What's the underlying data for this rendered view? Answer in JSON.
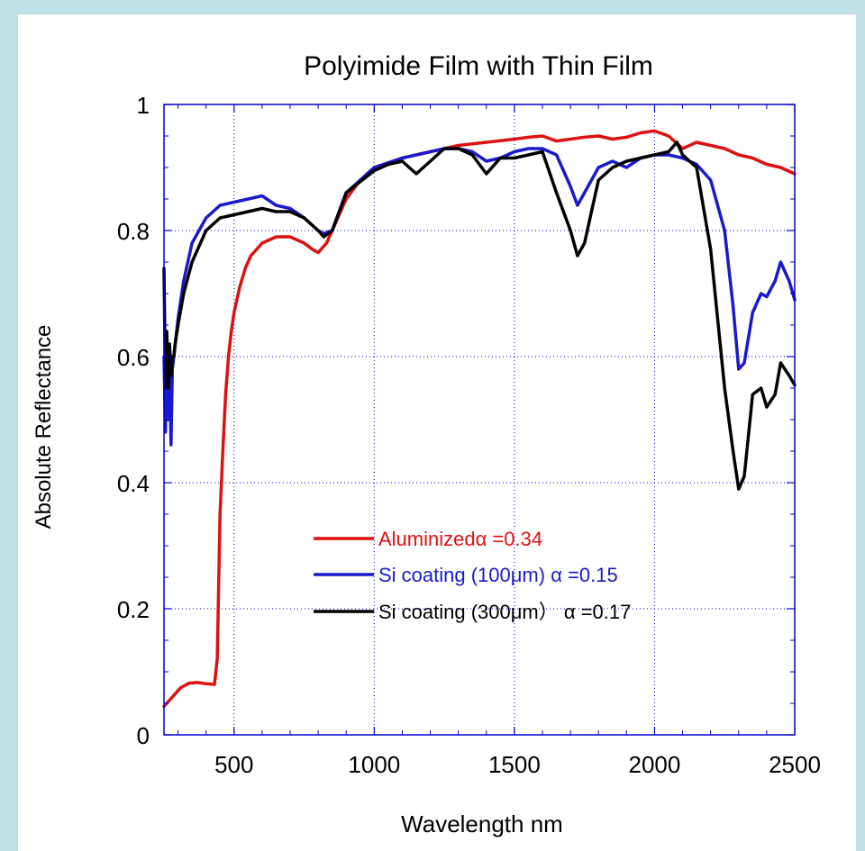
{
  "chart_data": {
    "type": "line",
    "title": "Polyimide Film with Thin Film",
    "xlabel": "Wavelength nm",
    "ylabel": "Absolute Reflectance",
    "xlim": [
      250,
      2500
    ],
    "ylim": [
      0,
      1
    ],
    "xticks": [
      500,
      1000,
      1500,
      2000,
      2500
    ],
    "xtick_labels": [
      "500",
      "1000",
      "1500",
      "2000",
      "2500"
    ],
    "yticks": [
      0,
      0.2,
      0.4,
      0.6,
      0.8,
      1
    ],
    "ytick_labels": [
      "0",
      "0.2",
      "0.4",
      "0.6",
      "0.8",
      "1"
    ],
    "grid": true,
    "legend_position": "lower-center",
    "series": [
      {
        "name": "Aluminizedα =0.34",
        "color": "#dd1111",
        "x": [
          250,
          280,
          310,
          340,
          370,
          400,
          430,
          440,
          450,
          460,
          470,
          480,
          490,
          500,
          520,
          540,
          560,
          600,
          650,
          700,
          750,
          780,
          800,
          830,
          860,
          900,
          950,
          1000,
          1100,
          1200,
          1300,
          1400,
          1500,
          1550,
          1600,
          1650,
          1700,
          1750,
          1800,
          1850,
          1900,
          1950,
          2000,
          2050,
          2100,
          2150,
          2200,
          2250,
          2300,
          2350,
          2400,
          2450,
          2500
        ],
        "y": [
          0.045,
          0.06,
          0.075,
          0.082,
          0.083,
          0.081,
          0.08,
          0.12,
          0.35,
          0.45,
          0.54,
          0.6,
          0.64,
          0.67,
          0.71,
          0.74,
          0.76,
          0.78,
          0.79,
          0.79,
          0.78,
          0.77,
          0.765,
          0.78,
          0.81,
          0.85,
          0.88,
          0.9,
          0.915,
          0.925,
          0.935,
          0.94,
          0.945,
          0.948,
          0.95,
          0.942,
          0.945,
          0.948,
          0.95,
          0.945,
          0.948,
          0.955,
          0.958,
          0.95,
          0.93,
          0.94,
          0.935,
          0.93,
          0.92,
          0.915,
          0.905,
          0.9,
          0.89
        ]
      },
      {
        "name": "Si coating (100μm)  α =0.15",
        "color": "#1a1acc",
        "x": [
          250,
          255,
          260,
          265,
          270,
          275,
          280,
          285,
          290,
          300,
          320,
          350,
          400,
          450,
          500,
          550,
          600,
          650,
          700,
          750,
          800,
          820,
          850,
          900,
          1000,
          1100,
          1150,
          1200,
          1250,
          1300,
          1350,
          1400,
          1450,
          1500,
          1550,
          1600,
          1650,
          1700,
          1725,
          1750,
          1800,
          1850,
          1900,
          1950,
          2000,
          2050,
          2100,
          2150,
          2200,
          2250,
          2280,
          2300,
          2320,
          2350,
          2380,
          2400,
          2430,
          2450,
          2480,
          2500
        ],
        "y": [
          0.6,
          0.48,
          0.62,
          0.5,
          0.6,
          0.46,
          0.58,
          0.6,
          0.62,
          0.66,
          0.72,
          0.78,
          0.82,
          0.84,
          0.845,
          0.85,
          0.855,
          0.84,
          0.835,
          0.82,
          0.8,
          0.795,
          0.8,
          0.86,
          0.9,
          0.915,
          0.92,
          0.925,
          0.93,
          0.93,
          0.925,
          0.91,
          0.915,
          0.925,
          0.93,
          0.93,
          0.92,
          0.87,
          0.84,
          0.86,
          0.9,
          0.91,
          0.9,
          0.915,
          0.92,
          0.92,
          0.915,
          0.905,
          0.88,
          0.8,
          0.68,
          0.58,
          0.59,
          0.67,
          0.7,
          0.695,
          0.72,
          0.75,
          0.72,
          0.69
        ]
      },
      {
        "name": "Si coating (300μm） α =0.17",
        "color": "#000000",
        "x": [
          250,
          255,
          260,
          265,
          270,
          275,
          280,
          285,
          290,
          300,
          320,
          350,
          400,
          450,
          500,
          550,
          600,
          650,
          700,
          750,
          800,
          820,
          850,
          900,
          1000,
          1050,
          1100,
          1150,
          1200,
          1250,
          1300,
          1350,
          1400,
          1450,
          1500,
          1550,
          1600,
          1650,
          1700,
          1725,
          1750,
          1800,
          1850,
          1900,
          1950,
          2000,
          2050,
          2080,
          2100,
          2150,
          2200,
          2250,
          2280,
          2300,
          2320,
          2350,
          2380,
          2400,
          2430,
          2450,
          2480,
          2500
        ],
        "y": [
          0.74,
          0.55,
          0.64,
          0.55,
          0.62,
          0.57,
          0.6,
          0.6,
          0.62,
          0.65,
          0.7,
          0.75,
          0.8,
          0.82,
          0.825,
          0.83,
          0.835,
          0.83,
          0.83,
          0.82,
          0.8,
          0.79,
          0.8,
          0.86,
          0.895,
          0.905,
          0.91,
          0.89,
          0.91,
          0.93,
          0.93,
          0.92,
          0.89,
          0.915,
          0.915,
          0.92,
          0.925,
          0.86,
          0.8,
          0.76,
          0.78,
          0.88,
          0.9,
          0.91,
          0.915,
          0.92,
          0.925,
          0.94,
          0.92,
          0.9,
          0.77,
          0.55,
          0.45,
          0.39,
          0.41,
          0.54,
          0.55,
          0.52,
          0.54,
          0.59,
          0.57,
          0.555
        ]
      }
    ]
  }
}
